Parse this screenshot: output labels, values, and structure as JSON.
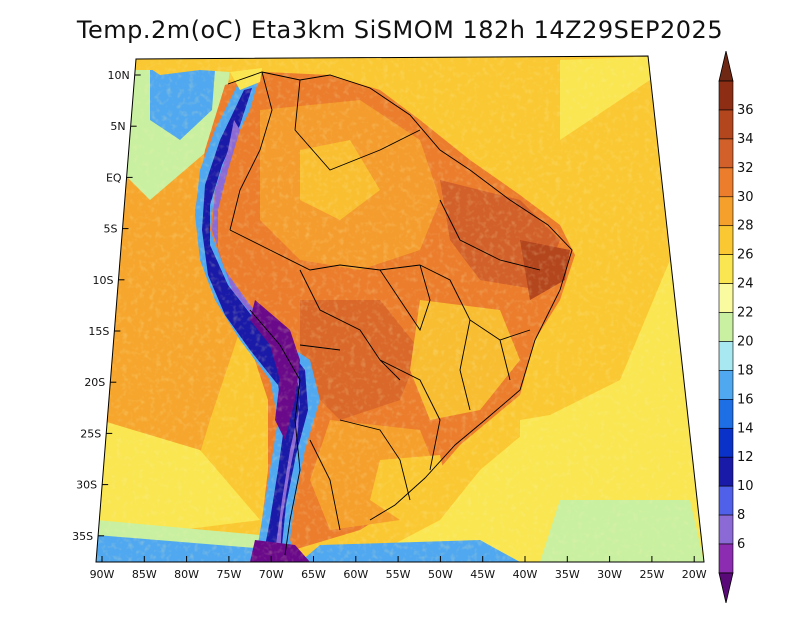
{
  "title": "Temp.2m(oC) Eta3km SiSMOM 182h 14Z29SEP2025",
  "map": {
    "lat_ticks": [
      "10N",
      "5N",
      "EQ",
      "5S",
      "10S",
      "15S",
      "20S",
      "25S",
      "30S",
      "35S"
    ],
    "lon_ticks": [
      "90W",
      "85W",
      "80W",
      "75W",
      "70W",
      "65W",
      "60W",
      "55W",
      "50W",
      "45W",
      "40W",
      "35W",
      "30W",
      "25W",
      "20W"
    ]
  },
  "colorbar": {
    "labels": [
      "6",
      "8",
      "10",
      "12",
      "14",
      "16",
      "18",
      "20",
      "22",
      "24",
      "26",
      "28",
      "30",
      "32",
      "34",
      "36"
    ],
    "colors": [
      "#6a0a8a",
      "#8c2cb0",
      "#8c6ad6",
      "#5060e8",
      "#1a1aa8",
      "#0a32c8",
      "#1e6ee6",
      "#50a8f0",
      "#a8e8f0",
      "#c8f0a0",
      "#fafaa0",
      "#fae650",
      "#fac832",
      "#f5a02d",
      "#eb7d2d",
      "#d2602a",
      "#b4461e",
      "#8c2d14"
    ],
    "under_color": "#5a0a78",
    "over_color": "#6e2814"
  }
}
